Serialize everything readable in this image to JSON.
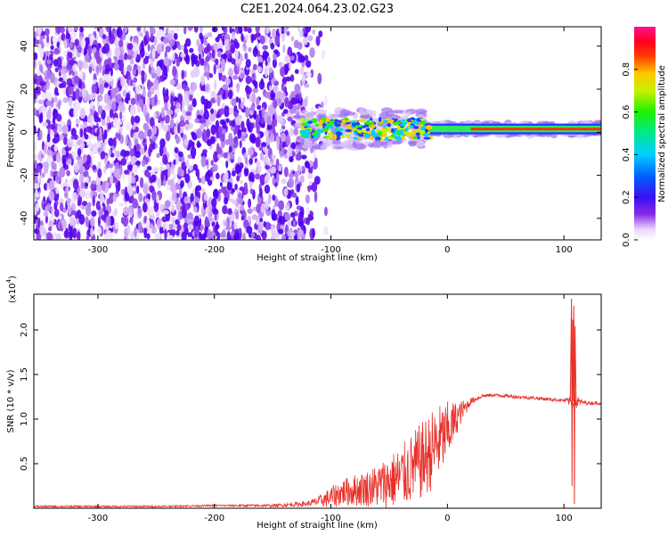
{
  "figure": {
    "title": "C2E1.2024.064.23.02.G23"
  },
  "chart_data": [
    {
      "type": "heatmap",
      "xlabel": "Height of straight line (km)",
      "ylabel": "Frequency (Hz)",
      "xlim": [
        -355,
        132
      ],
      "ylim": [
        -50,
        49
      ],
      "xticks": [
        -300,
        -200,
        -100,
        0,
        100
      ],
      "yticks": [
        -40,
        -20,
        0,
        20,
        40
      ],
      "description_points": {
        "noise_region_x": [
          -355,
          -110
        ],
        "noise_band_freq": [
          -50,
          49
        ],
        "signal_band_x": [
          -130,
          132
        ],
        "signal_band_freq_center": 1.5,
        "signal_band_halfwidth": 2.5
      },
      "colorbar": {
        "label": "Normalized spectral amplitude",
        "range": [
          0.0,
          1.0
        ],
        "ticks": [
          0.0,
          0.2,
          0.4,
          0.6,
          0.8
        ]
      }
    },
    {
      "type": "line",
      "xlabel": "Height of straight line (km)",
      "ylabel": "SNR (10 * v/v)",
      "y_exponent_label": "(x10",
      "y_exponent_power": "4",
      "y_exponent_close": ")",
      "xlim": [
        -355,
        132
      ],
      "ylim": [
        0,
        2.4
      ],
      "xticks": [
        -300,
        -200,
        -100,
        0,
        100
      ],
      "yticks": [
        0.5,
        1.0,
        1.5,
        2.0
      ],
      "color": "#e8302a",
      "series": [
        {
          "x": [
            -355,
            -300,
            -250,
            -200,
            -150,
            -120,
            -110,
            -100,
            -90,
            -80,
            -70,
            -60,
            -50,
            -40,
            -30,
            -20,
            -10,
            0,
            10,
            20,
            30,
            40,
            50,
            60,
            70,
            80,
            90,
            100,
            105,
            108,
            110,
            115,
            120,
            132
          ],
          "y": [
            0.02,
            0.02,
            0.02,
            0.03,
            0.03,
            0.05,
            0.08,
            0.12,
            0.18,
            0.2,
            0.22,
            0.25,
            0.3,
            0.35,
            0.45,
            0.55,
            0.7,
            0.85,
            1.05,
            1.2,
            1.26,
            1.27,
            1.26,
            1.25,
            1.24,
            1.23,
            1.22,
            1.21,
            1.2,
            1.2,
            1.19,
            1.19,
            1.18,
            1.18
          ],
          "noise_amp": [
            0.01,
            0.01,
            0.01,
            0.01,
            0.015,
            0.03,
            0.06,
            0.12,
            0.15,
            0.18,
            0.2,
            0.25,
            0.3,
            0.35,
            0.4,
            0.45,
            0.45,
            0.35,
            0.15,
            0.04,
            0.02,
            0.02,
            0.02,
            0.02,
            0.02,
            0.02,
            0.02,
            0.02,
            0.05,
            0.1,
            0.1,
            0.03,
            0.02,
            0.02
          ]
        }
      ],
      "spikes": [
        {
          "x": 107,
          "y_top": 2.35,
          "y_bottom": 0.25
        },
        {
          "x": 109,
          "y_top": 2.27,
          "y_bottom": 0.05
        }
      ]
    }
  ]
}
